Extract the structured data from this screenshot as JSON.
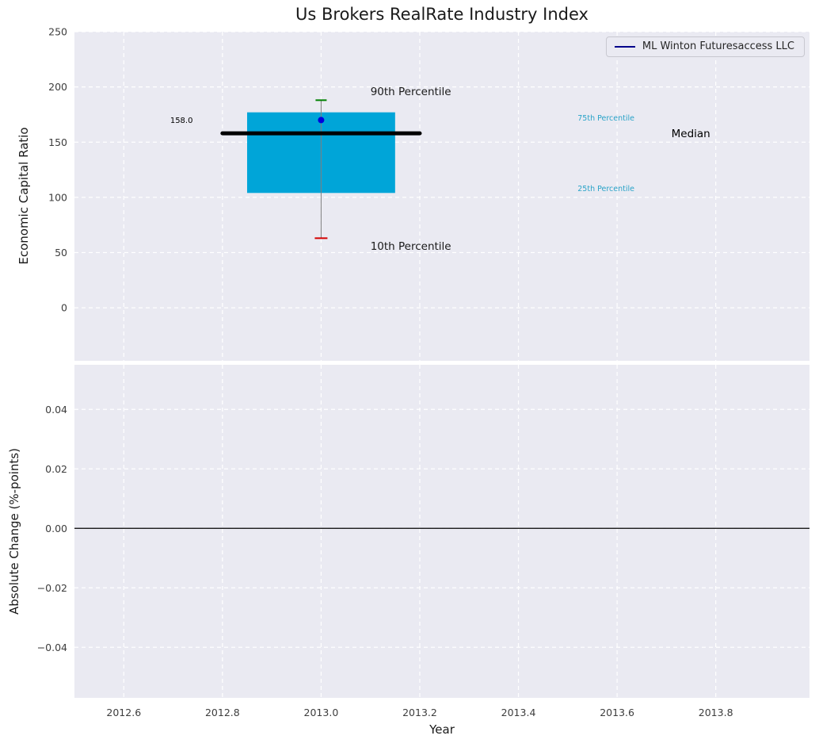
{
  "figure": {
    "title": "Us Brokers RealRate Industry Index"
  },
  "legend": {
    "label": "ML Winton Futuresaccess LLC",
    "line_color": "#00008b"
  },
  "colors": {
    "panel_bg": "#eaeaf2",
    "grid": "#ffffff",
    "box_fill": "#00a5d8",
    "median_line": "#000000",
    "whisker": "#7f7f7f",
    "p90_cap": "#008000",
    "p10_cap": "#d40000",
    "marker": "#0000dd",
    "tick_label": "#3d3d3d",
    "zero_line": "#000000",
    "percentile_label": "#29a3c8"
  },
  "chart_data": [
    {
      "type": "boxplot",
      "title": "Us Brokers RealRate Industry Index",
      "ylabel": "Economic Capital Ratio",
      "xlim": [
        2012.5,
        2013.99
      ],
      "ylim": [
        -48,
        250
      ],
      "grid": true,
      "legend_position": "upper right",
      "xticks": [
        {
          "v": 2012.6,
          "label": ""
        },
        {
          "v": 2012.8,
          "label": ""
        },
        {
          "v": 2013.0,
          "label": ""
        },
        {
          "v": 2013.2,
          "label": ""
        },
        {
          "v": 2013.4,
          "label": ""
        },
        {
          "v": 2013.6,
          "label": ""
        },
        {
          "v": 2013.8,
          "label": ""
        }
      ],
      "yticks": [
        {
          "v": 0,
          "label": "0"
        },
        {
          "v": 50,
          "label": "50"
        },
        {
          "v": 100,
          "label": "100"
        },
        {
          "v": 150,
          "label": "150"
        },
        {
          "v": 200,
          "label": "200"
        },
        {
          "v": 250,
          "label": "250"
        }
      ],
      "box": {
        "x": 2013.0,
        "p10": 63,
        "q1": 104,
        "median": 158.0,
        "q3": 177,
        "p90": 188,
        "company_value": 170,
        "box_x_left": 2012.85,
        "box_x_right": 2013.15,
        "median_x_left": 2012.8,
        "median_x_right": 2013.2
      },
      "annotations": [
        {
          "text": "158.0",
          "x": 2012.74,
          "y": 170,
          "color": "#000000",
          "size": 10,
          "anchor": "end"
        },
        {
          "text": "90th Percentile",
          "x": 2013.1,
          "y": 196,
          "color": "#1a1a1a",
          "size": 13.5,
          "anchor": "start"
        },
        {
          "text": "10th Percentile",
          "x": 2013.1,
          "y": 56,
          "color": "#1a1a1a",
          "size": 13.5,
          "anchor": "start"
        },
        {
          "text": "75th Percentile",
          "x": 2013.52,
          "y": 172,
          "color": "#29a3c8",
          "size": 9.5,
          "anchor": "start"
        },
        {
          "text": "25th Percentile",
          "x": 2013.52,
          "y": 108,
          "color": "#29a3c8",
          "size": 9.5,
          "anchor": "start"
        },
        {
          "text": "Median",
          "x": 2013.71,
          "y": 158,
          "color": "#000000",
          "size": 13.5,
          "anchor": "start"
        }
      ]
    },
    {
      "type": "line",
      "ylabel": "Absolute Change (%-points)",
      "xlabel": "Year",
      "xlim": [
        2012.5,
        2013.99
      ],
      "ylim": [
        -0.057,
        0.055
      ],
      "grid": true,
      "zero_line": 0.0,
      "xticks": [
        {
          "v": 2012.6,
          "label": "2012.6"
        },
        {
          "v": 2012.8,
          "label": "2012.8"
        },
        {
          "v": 2013.0,
          "label": "2013.0"
        },
        {
          "v": 2013.2,
          "label": "2013.2"
        },
        {
          "v": 2013.4,
          "label": "2013.4"
        },
        {
          "v": 2013.6,
          "label": "2013.6"
        },
        {
          "v": 2013.8,
          "label": "2013.8"
        }
      ],
      "yticks": [
        {
          "v": 0.04,
          "label": "0.04"
        },
        {
          "v": 0.02,
          "label": "0.02"
        },
        {
          "v": 0.0,
          "label": "0.00"
        },
        {
          "v": -0.02,
          "label": "−0.02"
        },
        {
          "v": -0.04,
          "label": "−0.04"
        }
      ],
      "series": [
        {
          "name": "ML Winton Futuresaccess LLC",
          "x": [],
          "values": []
        }
      ]
    }
  ]
}
